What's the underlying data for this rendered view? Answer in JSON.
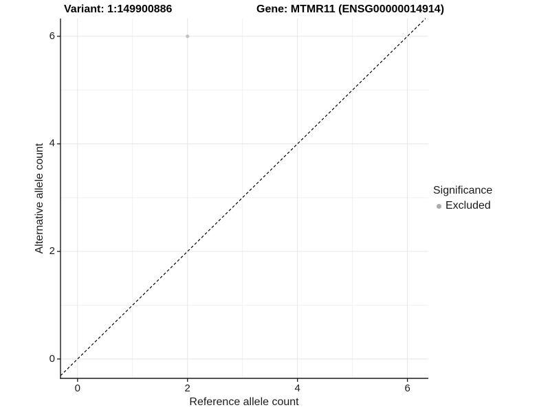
{
  "titles": {
    "variant": "Variant: 1:149900886",
    "gene": "Gene: MTMR11 (ENSG00000014914)"
  },
  "legend": {
    "title": "Significance",
    "items": [
      {
        "label": "Excluded",
        "color": "#ababab"
      }
    ],
    "position": "right"
  },
  "chart_data": {
    "type": "scatter",
    "title": "Variant: 1:149900886 | Gene: MTMR11 (ENSG00000014914)",
    "xlabel": "Reference allele count",
    "ylabel": "Alternative allele count",
    "xlim": [
      -0.31,
      6.38
    ],
    "ylim": [
      -0.36,
      6.33
    ],
    "x_ticks": [
      0,
      2,
      4,
      6
    ],
    "y_ticks": [
      0,
      2,
      4,
      6
    ],
    "x_minor_gridlines": [
      1,
      3,
      5
    ],
    "y_minor_gridlines": [
      1,
      3,
      5
    ],
    "grid": "major-and-minor",
    "legend_position": "right",
    "series": [
      {
        "name": "Excluded",
        "points": [
          {
            "x": 2,
            "y": 6
          }
        ],
        "color": "#c2c2c2",
        "marker_radius": 2.5
      }
    ],
    "identity_line": {
      "slope": 1,
      "intercept": 0,
      "style": "dashed",
      "color": "#000000"
    }
  },
  "colors": {
    "background": "#ffffff",
    "major_gridline": "#e6e6e6",
    "minor_gridline": "#f1f1f1",
    "axis_line": "#1a1a1a",
    "tick_mark": "#1a1a1a",
    "text": "#1a1a1a"
  }
}
